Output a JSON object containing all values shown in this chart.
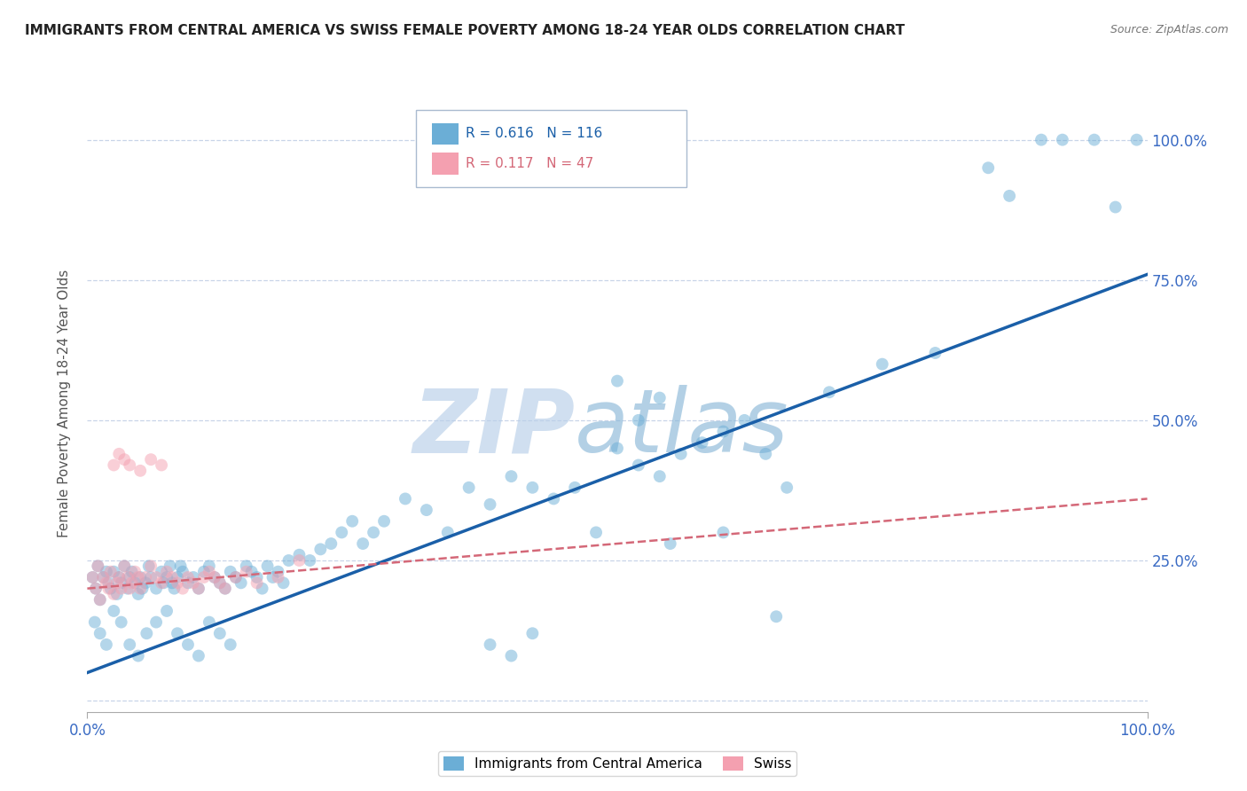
{
  "title": "IMMIGRANTS FROM CENTRAL AMERICA VS SWISS FEMALE POVERTY AMONG 18-24 YEAR OLDS CORRELATION CHART",
  "source": "Source: ZipAtlas.com",
  "ylabel": "Female Poverty Among 18-24 Year Olds",
  "xlim": [
    0.0,
    1.0
  ],
  "ylim": [
    -0.02,
    1.08
  ],
  "blue_R": 0.616,
  "blue_N": 116,
  "pink_R": 0.117,
  "pink_N": 47,
  "blue_color": "#6baed6",
  "pink_color": "#f4a0b0",
  "blue_line_color": "#1a5fa8",
  "pink_line_color": "#d46878",
  "background_color": "#ffffff",
  "grid_color": "#c8d4e8",
  "legend_label_blue": "Immigrants from Central America",
  "legend_label_pink": "Swiss",
  "blue_line_x0": 0.0,
  "blue_line_y0": 0.05,
  "blue_line_x1": 1.0,
  "blue_line_y1": 0.76,
  "pink_line_x0": 0.0,
  "pink_line_y0": 0.2,
  "pink_line_x1": 1.0,
  "pink_line_y1": 0.36,
  "blue_scatter_x": [
    0.005,
    0.008,
    0.01,
    0.012,
    0.015,
    0.018,
    0.02,
    0.022,
    0.025,
    0.028,
    0.03,
    0.032,
    0.035,
    0.038,
    0.04,
    0.042,
    0.045,
    0.048,
    0.05,
    0.052,
    0.055,
    0.058,
    0.06,
    0.065,
    0.07,
    0.072,
    0.075,
    0.078,
    0.08,
    0.082,
    0.085,
    0.088,
    0.09,
    0.095,
    0.1,
    0.105,
    0.11,
    0.115,
    0.12,
    0.125,
    0.13,
    0.135,
    0.14,
    0.145,
    0.15,
    0.155,
    0.16,
    0.165,
    0.17,
    0.175,
    0.18,
    0.185,
    0.19,
    0.2,
    0.21,
    0.22,
    0.23,
    0.24,
    0.25,
    0.26,
    0.27,
    0.28,
    0.3,
    0.32,
    0.34,
    0.36,
    0.38,
    0.4,
    0.42,
    0.44,
    0.46,
    0.48,
    0.5,
    0.52,
    0.54,
    0.56,
    0.58,
    0.6,
    0.62,
    0.64,
    0.66,
    0.5,
    0.52,
    0.54,
    0.38,
    0.4,
    0.42,
    0.85,
    0.87,
    0.9,
    0.92,
    0.95,
    0.97,
    0.99,
    0.8,
    0.75,
    0.7,
    0.65,
    0.6,
    0.55,
    0.007,
    0.012,
    0.018,
    0.025,
    0.032,
    0.04,
    0.048,
    0.056,
    0.065,
    0.075,
    0.085,
    0.095,
    0.105,
    0.115,
    0.125,
    0.135
  ],
  "blue_scatter_y": [
    0.22,
    0.2,
    0.24,
    0.18,
    0.22,
    0.23,
    0.21,
    0.2,
    0.23,
    0.19,
    0.22,
    0.21,
    0.24,
    0.2,
    0.22,
    0.23,
    0.21,
    0.19,
    0.22,
    0.2,
    0.21,
    0.24,
    0.22,
    0.2,
    0.23,
    0.21,
    0.22,
    0.24,
    0.21,
    0.2,
    0.22,
    0.24,
    0.23,
    0.21,
    0.22,
    0.2,
    0.23,
    0.24,
    0.22,
    0.21,
    0.2,
    0.23,
    0.22,
    0.21,
    0.24,
    0.23,
    0.22,
    0.2,
    0.24,
    0.22,
    0.23,
    0.21,
    0.25,
    0.26,
    0.25,
    0.27,
    0.28,
    0.3,
    0.32,
    0.28,
    0.3,
    0.32,
    0.36,
    0.34,
    0.3,
    0.38,
    0.35,
    0.4,
    0.38,
    0.36,
    0.38,
    0.3,
    0.45,
    0.42,
    0.4,
    0.44,
    0.46,
    0.48,
    0.5,
    0.44,
    0.38,
    0.57,
    0.5,
    0.54,
    0.1,
    0.08,
    0.12,
    0.95,
    0.9,
    1.0,
    1.0,
    1.0,
    0.88,
    1.0,
    0.62,
    0.6,
    0.55,
    0.15,
    0.3,
    0.28,
    0.14,
    0.12,
    0.1,
    0.16,
    0.14,
    0.1,
    0.08,
    0.12,
    0.14,
    0.16,
    0.12,
    0.1,
    0.08,
    0.14,
    0.12,
    0.1
  ],
  "pink_scatter_x": [
    0.005,
    0.008,
    0.01,
    0.012,
    0.015,
    0.018,
    0.02,
    0.022,
    0.025,
    0.028,
    0.03,
    0.032,
    0.035,
    0.038,
    0.04,
    0.042,
    0.045,
    0.048,
    0.05,
    0.055,
    0.06,
    0.065,
    0.07,
    0.075,
    0.08,
    0.085,
    0.09,
    0.095,
    0.1,
    0.105,
    0.11,
    0.115,
    0.12,
    0.125,
    0.13,
    0.14,
    0.15,
    0.16,
    0.18,
    0.2,
    0.025,
    0.03,
    0.035,
    0.04,
    0.05,
    0.06,
    0.07
  ],
  "pink_scatter_y": [
    0.22,
    0.2,
    0.24,
    0.18,
    0.22,
    0.21,
    0.2,
    0.23,
    0.19,
    0.21,
    0.22,
    0.2,
    0.24,
    0.22,
    0.2,
    0.21,
    0.23,
    0.22,
    0.2,
    0.22,
    0.24,
    0.22,
    0.21,
    0.23,
    0.22,
    0.21,
    0.2,
    0.22,
    0.21,
    0.2,
    0.22,
    0.23,
    0.22,
    0.21,
    0.2,
    0.22,
    0.23,
    0.21,
    0.22,
    0.25,
    0.42,
    0.44,
    0.43,
    0.42,
    0.41,
    0.43,
    0.42
  ]
}
